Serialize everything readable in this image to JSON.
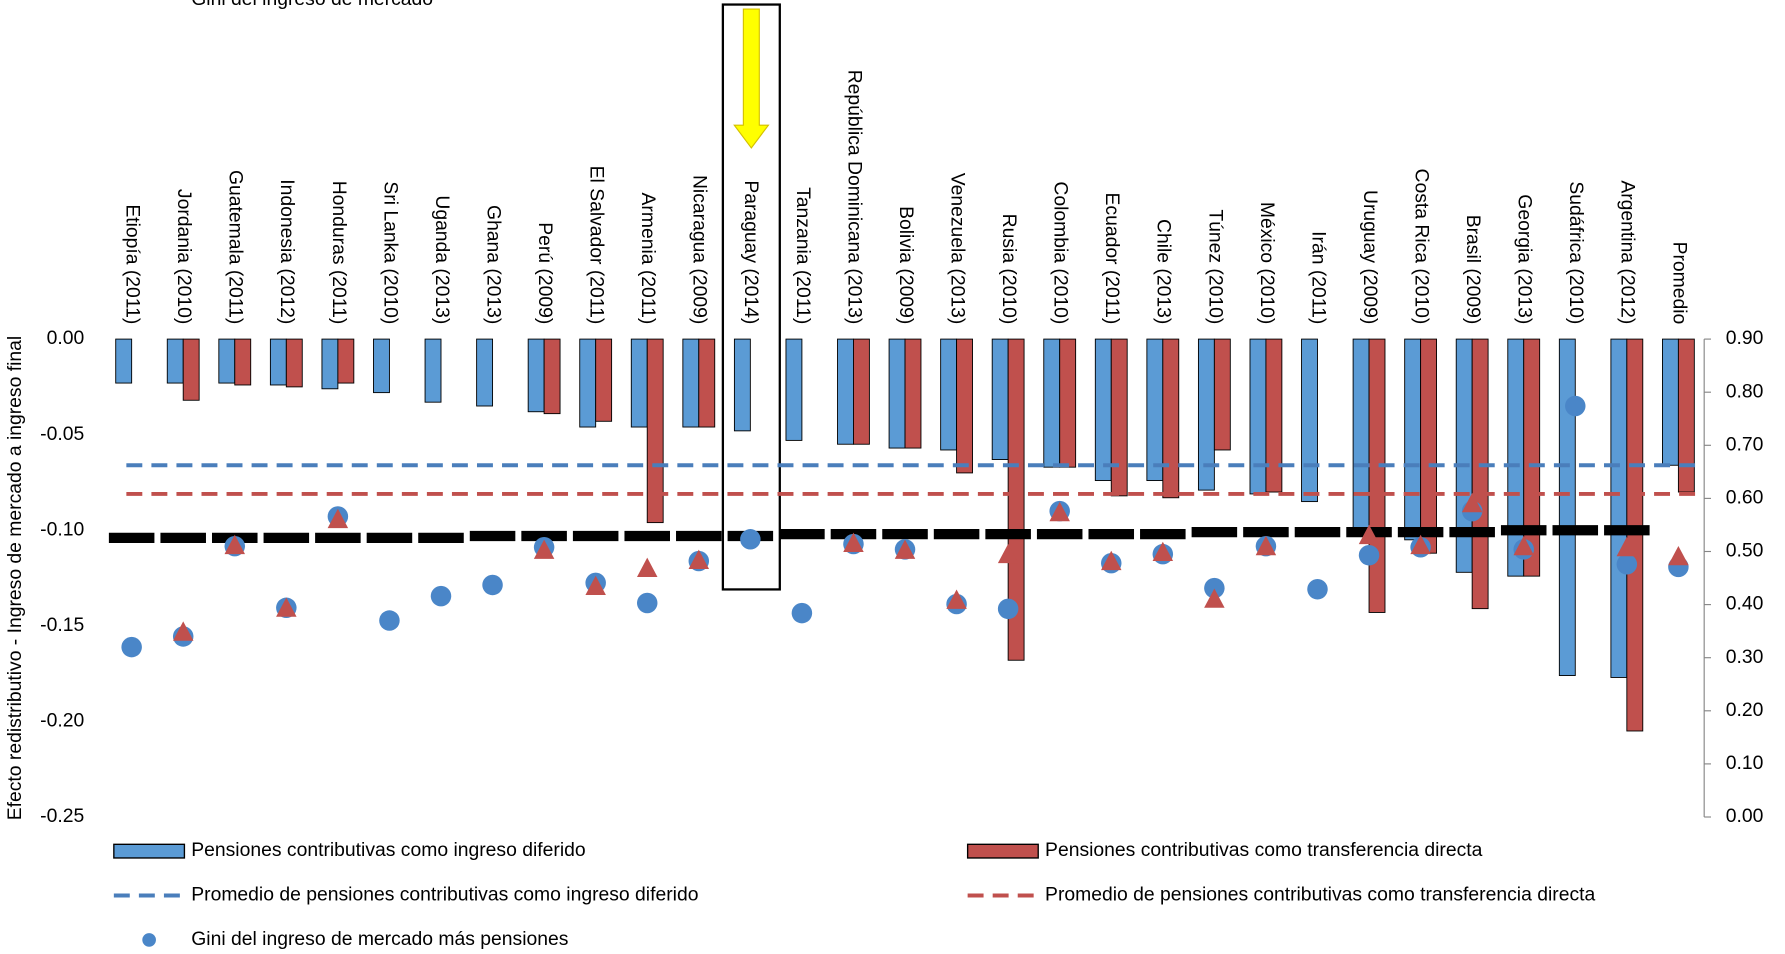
{
  "chart_data": {
    "type": "bar",
    "y_label": "Efecto redistributivo - Ingreso de mercado a ingreso final",
    "categories": [
      "Etiopía (2011)",
      "Jordania (2010)",
      "Guatemala (2011)",
      "Indonesia (2012)",
      "Honduras (2011)",
      "Sri Lanka (2010)",
      "Uganda (2013)",
      "Ghana (2013)",
      "Perú (2009)",
      "El Salvador (2011)",
      "Armenia (2011)",
      "Nicaragua (2009)",
      "Paraguay (2014)",
      "Tanzania (2011)",
      "República Dominicana (2013)",
      "Bolivia (2009)",
      "Venezuela (2013)",
      "Rusia (2010)",
      "Colombia (2010)",
      "Ecuador (2011)",
      "Chile (2013)",
      "Túnez (2010)",
      "México (2010)",
      "Irán (2011)",
      "Uruguay (2009)",
      "Costa Rica (2010)",
      "Brasil (2009)",
      "Georgia (2013)",
      "Sudáfrica (2010)",
      "Argentina (2012)",
      "Promedio"
    ],
    "ylim": [
      -0.25,
      0
    ],
    "yticks": [
      {
        "value": -0.25,
        "label": "-0.25"
      },
      {
        "value": -0.2,
        "label": "-0.20"
      },
      {
        "value": -0.15,
        "label": "-0.15"
      },
      {
        "value": -0.1,
        "label": "-0.10"
      },
      {
        "value": -0.05,
        "label": "-0.05"
      },
      {
        "value": 0,
        "label": "0.00"
      }
    ],
    "y2lim": [
      0,
      0.9
    ],
    "y2ticks": [
      {
        "value": 0,
        "label": "0.00"
      },
      {
        "value": 0.1,
        "label": "0.10"
      },
      {
        "value": 0.2,
        "label": "0.20"
      },
      {
        "value": 0.3,
        "label": "0.30"
      },
      {
        "value": 0.4,
        "label": "0.40"
      },
      {
        "value": 0.5,
        "label": "0.50"
      },
      {
        "value": 0.6,
        "label": "0.60"
      },
      {
        "value": 0.7,
        "label": "0.70"
      },
      {
        "value": 0.8,
        "label": "0.80"
      },
      {
        "value": 0.9,
        "label": "0.90"
      }
    ],
    "series": [
      {
        "name": "Pensiones contributivas como ingreso diferido",
        "type": "bar",
        "color": "#5b9bd5",
        "values": [
          -0.023,
          -0.023,
          -0.023,
          -0.024,
          -0.026,
          -0.028,
          -0.033,
          -0.035,
          -0.038,
          -0.046,
          -0.046,
          -0.046,
          -0.048,
          -0.053,
          -0.055,
          -0.057,
          -0.058,
          -0.063,
          -0.067,
          -0.074,
          -0.074,
          -0.079,
          -0.081,
          -0.085,
          -0.099,
          -0.105,
          -0.122,
          -0.124,
          -0.176,
          -0.177,
          -0.066
        ]
      },
      {
        "name": "Pensiones contributivas como transferencia directa",
        "type": "bar",
        "color": "#c0504d",
        "values": [
          null,
          -0.032,
          -0.024,
          -0.025,
          -0.023,
          null,
          null,
          null,
          -0.039,
          -0.043,
          -0.096,
          -0.046,
          null,
          null,
          -0.055,
          -0.057,
          -0.07,
          -0.168,
          -0.067,
          -0.082,
          -0.083,
          -0.058,
          -0.08,
          null,
          -0.143,
          -0.112,
          -0.141,
          -0.124,
          null,
          -0.205,
          -0.08
        ]
      },
      {
        "type": "dash",
        "color": "#000000",
        "values": [
          -0.104,
          -0.104,
          -0.104,
          -0.104,
          -0.104,
          -0.104,
          -0.104,
          -0.103,
          -0.103,
          -0.103,
          -0.103,
          -0.103,
          -0.103,
          -0.102,
          -0.102,
          -0.102,
          -0.102,
          -0.102,
          -0.102,
          -0.102,
          -0.102,
          -0.101,
          -0.101,
          -0.101,
          -0.101,
          -0.101,
          -0.101,
          -0.1,
          -0.1,
          -0.1,
          null
        ]
      },
      {
        "name": "Gini del ingreso de mercado más pensiones",
        "type": "circle",
        "color": "#4a86c8",
        "axis": "y2",
        "values": [
          0.32,
          0.34,
          0.51,
          0.394,
          0.566,
          0.37,
          0.416,
          0.437,
          0.508,
          0.441,
          0.403,
          0.482,
          0.523,
          0.384,
          0.514,
          0.504,
          0.401,
          0.392,
          0.576,
          0.478,
          0.495,
          0.431,
          0.51,
          0.429,
          0.493,
          0.508,
          0.576,
          0.504,
          0.774,
          0.476,
          0.471
        ]
      },
      {
        "name": "Gini del ingreso de mercado",
        "type": "triangle",
        "color": "#c0504d",
        "axis": "y2",
        "values": [
          null,
          0.347,
          0.51,
          0.392,
          0.559,
          null,
          null,
          null,
          0.501,
          0.433,
          0.467,
          0.482,
          null,
          null,
          0.514,
          0.501,
          0.407,
          0.493,
          0.572,
          0.48,
          0.497,
          0.409,
          0.508,
          null,
          0.529,
          0.51,
          0.589,
          0.508,
          null,
          0.506,
          0.489
        ]
      }
    ],
    "reference_lines": [
      {
        "name": "Promedio de pensiones contributivas como ingreso diferido",
        "color": "#4a7ebb",
        "value": -0.066
      },
      {
        "name": "Promedio de pensiones contributivas como transferencia directa",
        "color": "#c0504d",
        "value": -0.081
      }
    ]
  }
}
